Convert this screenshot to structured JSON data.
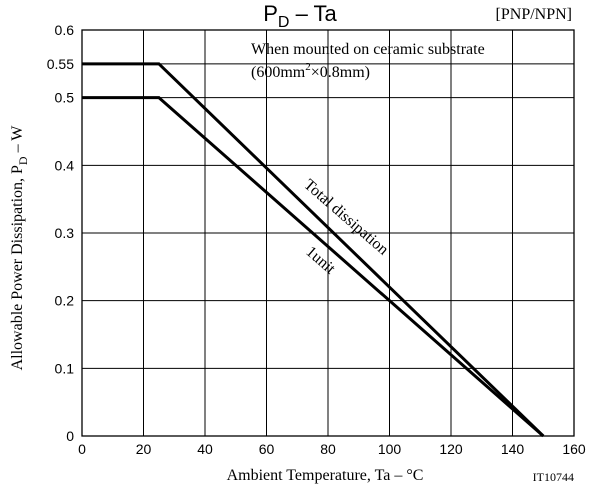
{
  "chart_data": {
    "type": "line",
    "title_main": "P",
    "title_sub": "D",
    "title_rest": " –  Ta",
    "tag": "[PNP/NPN]",
    "xlabel": "Ambient Temperature, Ta  –  °C",
    "ylabel_main": "Allowable Power Dissipation, P",
    "ylabel_sub": "D",
    "ylabel_rest": "  –  W",
    "figure_id": "IT10744",
    "xlim": [
      0,
      160
    ],
    "ylim": [
      0,
      0.6
    ],
    "x_ticks": [
      "0",
      "20",
      "40",
      "60",
      "80",
      "100",
      "120",
      "140",
      "160"
    ],
    "y_ticks": [
      {
        "value": 0,
        "label": "0"
      },
      {
        "value": 0.1,
        "label": "0.1"
      },
      {
        "value": 0.2,
        "label": "0.2"
      },
      {
        "value": 0.3,
        "label": "0.3"
      },
      {
        "value": 0.4,
        "label": "0.4"
      },
      {
        "value": 0.5,
        "label": "0.5"
      },
      {
        "value": 0.55,
        "label": "0.55"
      },
      {
        "value": 0.6,
        "label": "0.6"
      }
    ],
    "grid": true,
    "annotation": {
      "line1": "When mounted on ceramic substrate",
      "line2_a": "(600mm",
      "line2_sup": "2",
      "line2_b": "×0.8mm)"
    },
    "series": [
      {
        "name": "Total dissipation",
        "x": [
          0,
          25,
          150
        ],
        "y": [
          0.55,
          0.55,
          0
        ]
      },
      {
        "name": "1unit",
        "x": [
          0,
          25,
          150
        ],
        "y": [
          0.5,
          0.5,
          0
        ]
      }
    ]
  }
}
